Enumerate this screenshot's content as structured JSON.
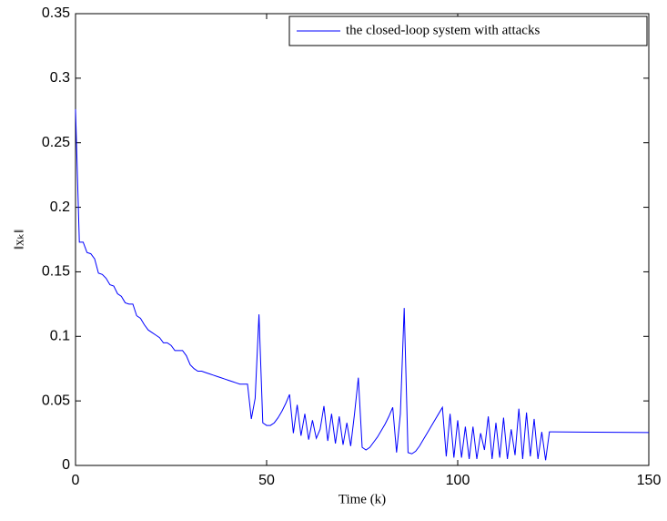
{
  "chart_data": {
    "type": "line",
    "xlabel": "Time (k)",
    "ylabel": "‖xₖ‖",
    "x": [
      0,
      1,
      2,
      3,
      4,
      5,
      6,
      7,
      8,
      9,
      10,
      11,
      12,
      13,
      14,
      15,
      16,
      17,
      18,
      19,
      20,
      21,
      22,
      23,
      24,
      25,
      26,
      27,
      28,
      29,
      30,
      31,
      32,
      33,
      34,
      35,
      36,
      37,
      38,
      39,
      40,
      41,
      42,
      43,
      44,
      45,
      46,
      47,
      48,
      49,
      50,
      51,
      52,
      53,
      54,
      55,
      56,
      57,
      58,
      59,
      60,
      61,
      62,
      63,
      64,
      65,
      66,
      67,
      68,
      69,
      70,
      71,
      72,
      73,
      74,
      75,
      76,
      77,
      78,
      79,
      80,
      81,
      82,
      83,
      84,
      85,
      86,
      87,
      88,
      89,
      90,
      91,
      92,
      93,
      94,
      95,
      96,
      97,
      98,
      99,
      100,
      101,
      102,
      103,
      104,
      105,
      106,
      107,
      108,
      109,
      110,
      111,
      112,
      113,
      114,
      115,
      116,
      117,
      118,
      119,
      120,
      121,
      122,
      123,
      124,
      125,
      150
    ],
    "series": [
      {
        "name": "the closed-loop system with attacks",
        "color": "#0000ff",
        "values": [
          0.276,
          0.173,
          0.173,
          0.165,
          0.164,
          0.16,
          0.149,
          0.148,
          0.145,
          0.14,
          0.139,
          0.133,
          0.131,
          0.126,
          0.125,
          0.125,
          0.116,
          0.114,
          0.109,
          0.105,
          0.103,
          0.101,
          0.099,
          0.095,
          0.095,
          0.093,
          0.089,
          0.089,
          0.089,
          0.085,
          0.078,
          0.075,
          0.073,
          0.073,
          0.072,
          0.071,
          0.07,
          0.069,
          0.068,
          0.067,
          0.066,
          0.065,
          0.064,
          0.063,
          0.063,
          0.063,
          0.036,
          0.052,
          0.117,
          0.033,
          0.031,
          0.031,
          0.033,
          0.037,
          0.042,
          0.048,
          0.055,
          0.025,
          0.047,
          0.023,
          0.04,
          0.02,
          0.035,
          0.021,
          0.028,
          0.046,
          0.019,
          0.04,
          0.017,
          0.038,
          0.016,
          0.033,
          0.015,
          0.04,
          0.068,
          0.014,
          0.012,
          0.014,
          0.018,
          0.022,
          0.027,
          0.032,
          0.038,
          0.045,
          0.01,
          0.04,
          0.122,
          0.01,
          0.009,
          0.011,
          0.015,
          0.02,
          0.025,
          0.03,
          0.035,
          0.04,
          0.045,
          0.007,
          0.04,
          0.006,
          0.035,
          0.006,
          0.03,
          0.005,
          0.03,
          0.005,
          0.025,
          0.012,
          0.038,
          0.005,
          0.033,
          0.006,
          0.037,
          0.005,
          0.028,
          0.008,
          0.044,
          0.005,
          0.041,
          0.007,
          0.036,
          0.005,
          0.026,
          0.004,
          0.026,
          0.026,
          0.0255
        ]
      }
    ],
    "xlim": [
      0,
      150
    ],
    "xticks": [
      0,
      50,
      100,
      150
    ],
    "ylim": [
      0,
      0.35
    ],
    "yticks": [
      0,
      0.05,
      0.1,
      0.15,
      0.2,
      0.25,
      0.3,
      0.35
    ],
    "legend": "upper right"
  }
}
